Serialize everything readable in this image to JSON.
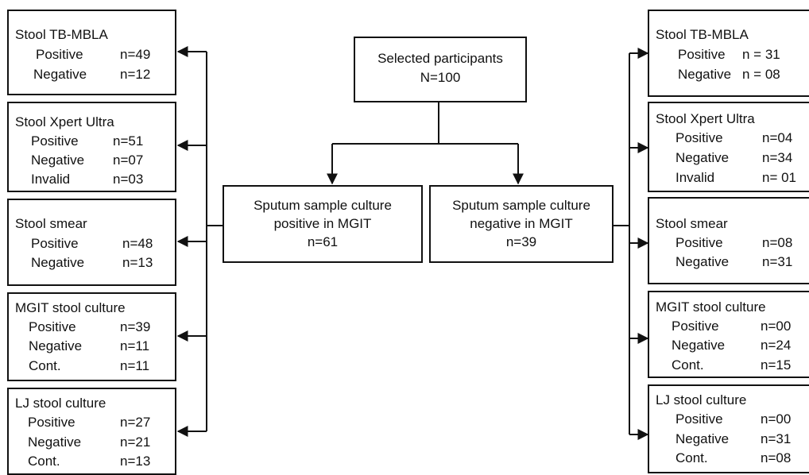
{
  "center": {
    "selected": {
      "line1": "Selected participants",
      "line2": "N=100"
    },
    "positive": {
      "line1": "Sputum sample culture",
      "line2": "positive in MGIT",
      "line3": "n=61"
    },
    "negative": {
      "line1": "Sputum sample culture",
      "line2": "negative in MGIT",
      "line3": "n=39"
    }
  },
  "left": [
    {
      "title": "Stool TB-MBLA",
      "rows": [
        {
          "label": "Positive",
          "value": "n=49"
        },
        {
          "label": "Negative",
          "value": "n=12"
        }
      ]
    },
    {
      "title": "Stool Xpert Ultra",
      "rows": [
        {
          "label": "Positive",
          "value": "n=51"
        },
        {
          "label": "Negative",
          "value": "n=07"
        },
        {
          "label": "Invalid",
          "value": "n=03"
        }
      ]
    },
    {
      "title": "Stool smear",
      "rows": [
        {
          "label": "Positive",
          "value": "n=48"
        },
        {
          "label": "Negative",
          "value": "n=13"
        }
      ]
    },
    {
      "title": "MGIT stool culture",
      "rows": [
        {
          "label": "Positive",
          "value": "n=39"
        },
        {
          "label": "Negative",
          "value": "n=11"
        },
        {
          "label": "Cont.",
          "value": "n=11"
        }
      ]
    },
    {
      "title": "LJ stool culture",
      "rows": [
        {
          "label": "Positive",
          "value": "n=27"
        },
        {
          "label": "Negative",
          "value": "n=21"
        },
        {
          "label": "Cont.",
          "value": "n=13"
        }
      ]
    }
  ],
  "right": [
    {
      "title": "Stool TB-MBLA",
      "rows": [
        {
          "label": "Positive",
          "value": "n = 31"
        },
        {
          "label": "Negative",
          "value": "n = 08"
        }
      ]
    },
    {
      "title": "Stool Xpert Ultra",
      "rows": [
        {
          "label": "Positive",
          "value": "n=04"
        },
        {
          "label": "Negative",
          "value": "n=34"
        },
        {
          "label": "Invalid",
          "value": "n= 01"
        }
      ]
    },
    {
      "title": "Stool smear",
      "rows": [
        {
          "label": "Positive",
          "value": "n=08"
        },
        {
          "label": "Negative",
          "value": "n=31"
        }
      ]
    },
    {
      "title": "MGIT stool culture",
      "rows": [
        {
          "label": "Positive",
          "value": "n=00"
        },
        {
          "label": "Negative",
          "value": "n=24"
        },
        {
          "label": "Cont.",
          "value": "n=15"
        }
      ]
    },
    {
      "title": "LJ stool culture",
      "rows": [
        {
          "label": "Positive",
          "value": "n=00"
        },
        {
          "label": "Negative",
          "value": "n=31"
        },
        {
          "label": "Cont.",
          "value": "n=08"
        }
      ]
    }
  ]
}
